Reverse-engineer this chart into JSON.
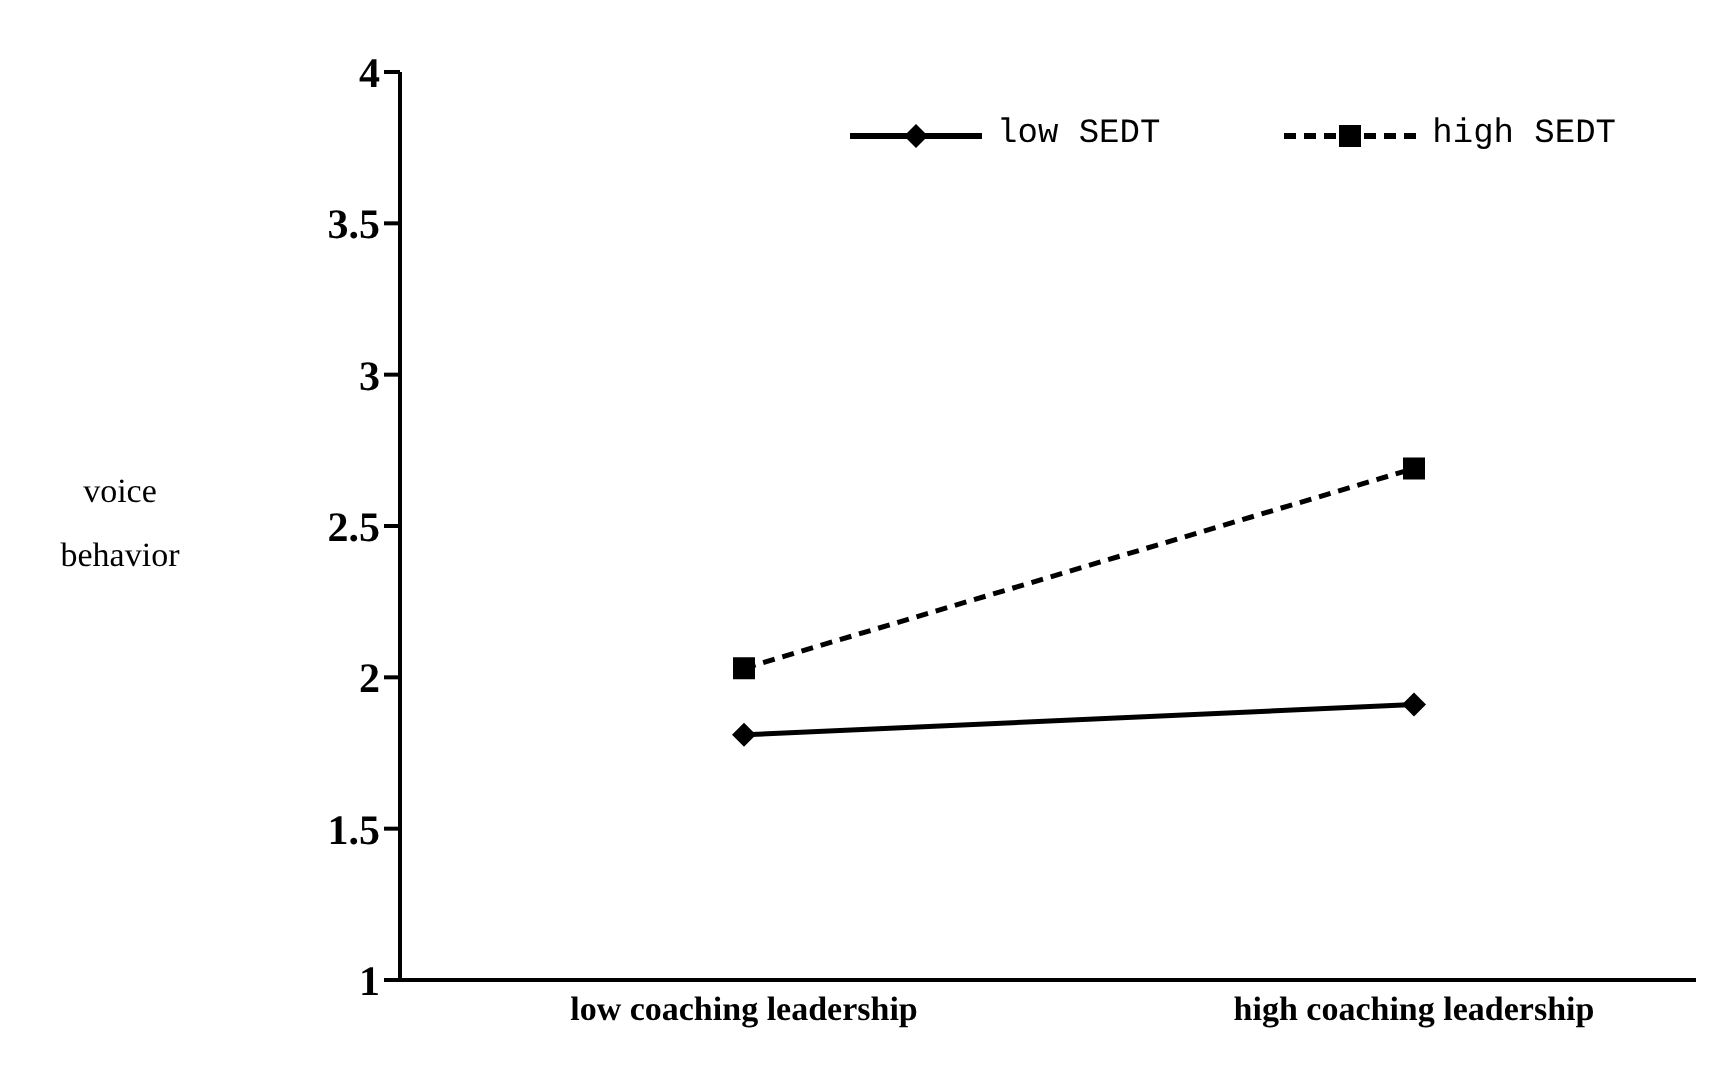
{
  "chart_data": {
    "type": "line",
    "ylabel": "voice behavior",
    "categories": [
      "low coaching leadership",
      "high coaching leadership"
    ],
    "series": [
      {
        "name": "low SEDT",
        "color": "#000000",
        "values": [
          1.81,
          1.91
        ],
        "marker": "diamond",
        "line_style": "solid"
      },
      {
        "name": "high SEDT",
        "color": "#000000",
        "values": [
          2.03,
          2.69
        ],
        "marker": "square",
        "line_style": "dashed"
      }
    ],
    "ylim": [
      1,
      4
    ],
    "yticks": [
      1,
      1.5,
      2,
      2.5,
      3,
      3.5,
      4
    ],
    "grid": false,
    "legend": "top right"
  }
}
